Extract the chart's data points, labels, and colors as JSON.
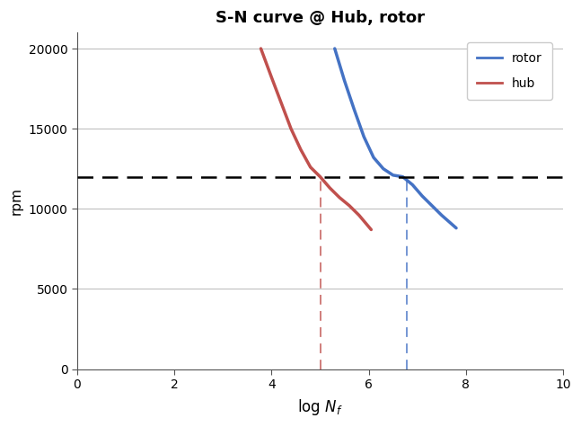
{
  "title": "S-N curve @ Hub, rotor",
  "xlabel": "log $N_f$",
  "ylabel": "rpm",
  "xlim": [
    0,
    10
  ],
  "ylim": [
    0,
    21000
  ],
  "yticks": [
    0,
    5000,
    10000,
    15000,
    20000
  ],
  "xticks": [
    0,
    2,
    4,
    6,
    8,
    10
  ],
  "hub_x": [
    3.78,
    4.0,
    4.2,
    4.4,
    4.6,
    4.8,
    5.0,
    5.2,
    5.4,
    5.6,
    5.8,
    6.05
  ],
  "hub_y": [
    20000,
    18200,
    16600,
    15000,
    13700,
    12600,
    12000,
    11300,
    10700,
    10200,
    9600,
    8700
  ],
  "rotor_x": [
    5.3,
    5.5,
    5.7,
    5.9,
    6.1,
    6.3,
    6.5,
    6.7,
    6.9,
    7.1,
    7.3,
    7.5,
    7.8
  ],
  "rotor_y": [
    20000,
    18000,
    16200,
    14500,
    13200,
    12500,
    12100,
    12000,
    11500,
    10800,
    10200,
    9600,
    8800
  ],
  "hub_color": "#C0504D",
  "rotor_color": "#4472C4",
  "hline_y": 12000,
  "hub_vline_x": 5.0,
  "rotor_vline_x": 6.78,
  "hline_color": "#000000",
  "hub_vline_color": "#C0504D",
  "rotor_vline_color": "#4472C4",
  "background_color": "#FFFFFF",
  "grid_color": "#BFBFBF",
  "legend_labels": [
    "rotor",
    "hub"
  ],
  "legend_colors": [
    "#4472C4",
    "#C0504D"
  ]
}
